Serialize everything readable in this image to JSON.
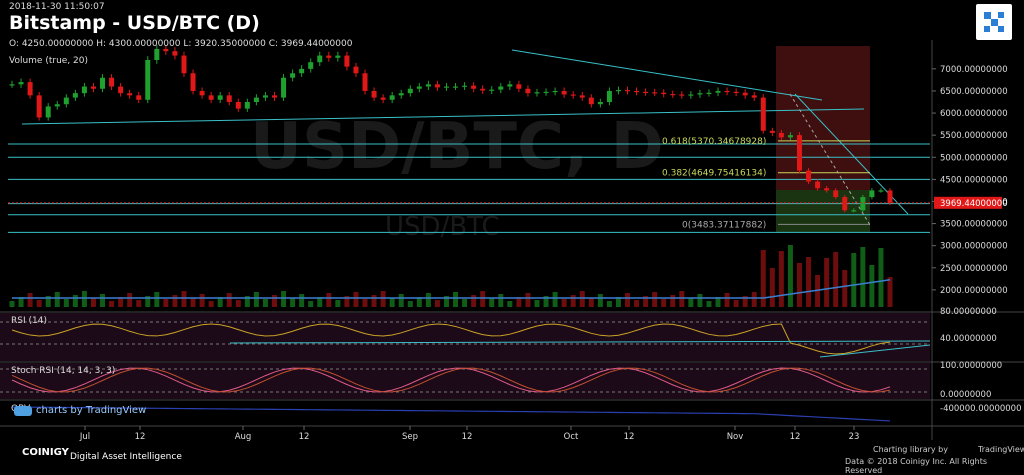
{
  "header": {
    "timestamp": "2018-11-30 11:50:07",
    "title": "Bitstamp - USD/BTC (D)",
    "ohlc": "O: 4250.00000000 H: 4300.00000000 L: 3920.35000000 C: 3969.44000000",
    "volume_label": "Volume (true, 20)"
  },
  "watermark": {
    "pair": "USD/BTC, D",
    "pair_small": "USD/BTC"
  },
  "branding": {
    "tv_badge": "charts by TradingView",
    "coinigy": "COINIGY",
    "coinigy_sub": "Digital Asset Intelligence",
    "charting_lib": "Charting library by",
    "tv_name": "TradingView",
    "footer": "Data © 2018 Coinigy Inc. All Rights Reserved"
  },
  "colors": {
    "up": "#1fa12f",
    "down": "#e01818",
    "line": "#39c0c8",
    "fib": "#c8d85a",
    "price": "#e01818",
    "bg": "#000000"
  },
  "chart_data": [
    {
      "type": "candlestick",
      "title": "Bitstamp - USD/BTC (D)",
      "x_ticks": [
        "Jul",
        "12",
        "Aug",
        "12",
        "Sep",
        "12",
        "Oct",
        "12",
        "Nov",
        "12",
        "23"
      ],
      "y_ticks": [
        "2000.00000000",
        "2500.00000000",
        "3000.00000000",
        "3500.00000000",
        "4000.00000000",
        "4500.00000000",
        "5000.00000000",
        "5500.00000000",
        "6000.00000000",
        "6500.00000000",
        "7000.00000000"
      ],
      "ylim": [
        1500,
        7200
      ],
      "current_price": "3969.44000000",
      "fib_levels": [
        {
          "label": "0.618(5370.34678928)",
          "value": 5370.35
        },
        {
          "label": "0.382(4649.75416134)",
          "value": 4649.75
        },
        {
          "label": "0(3483.37117882)",
          "value": 3483.37
        }
      ],
      "horizontal_lines": [
        5300,
        5000,
        4500,
        3950,
        3700,
        3300
      ],
      "close": [
        6650,
        6700,
        6400,
        5900,
        6150,
        6200,
        6350,
        6450,
        6600,
        6550,
        6800,
        6600,
        6450,
        6400,
        6300,
        7200,
        7450,
        7400,
        7300,
        6900,
        6500,
        6400,
        6300,
        6400,
        6250,
        6100,
        6250,
        6350,
        6400,
        6350,
        6800,
        6900,
        7000,
        7150,
        7300,
        7250,
        7300,
        7050,
        6900,
        6500,
        6350,
        6300,
        6400,
        6450,
        6550,
        6600,
        6650,
        6580,
        6600,
        6600,
        6620,
        6550,
        6510,
        6530,
        6600,
        6650,
        6550,
        6450,
        6470,
        6480,
        6500,
        6420,
        6400,
        6350,
        6200,
        6250,
        6500,
        6520,
        6500,
        6480,
        6470,
        6460,
        6430,
        6420,
        6400,
        6420,
        6450,
        6460,
        6500,
        6480,
        6460,
        6400,
        6350,
        5600,
        5550,
        5450,
        5500,
        4700,
        4450,
        4300,
        4250,
        4100,
        3800,
        3800,
        4100,
        4250,
        4250,
        3969
      ],
      "volume_note": "volume bars shown below price; values not labeled",
      "rsi": {
        "label": "RSI (14)",
        "ticks": [
          "80.00000000",
          "40.00000000"
        ]
      },
      "stoch_rsi": {
        "label": "Stoch RSI (14, 14, 3, 3)",
        "ticks": [
          "100.00000000",
          "0.00000000"
        ]
      },
      "obv": {
        "label": "OBV",
        "ticks": [
          "-400000.00000000"
        ]
      }
    }
  ]
}
